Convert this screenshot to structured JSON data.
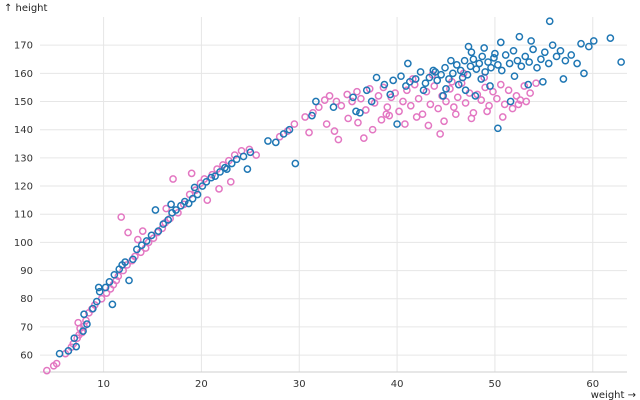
{
  "chart_data": {
    "type": "scatter",
    "title": "",
    "xlabel": "weight →",
    "ylabel": "↑ height",
    "xlim": [
      3.5,
      63.5
    ],
    "ylim": [
      54,
      180
    ],
    "x_ticks": [
      10,
      20,
      30,
      40,
      50,
      60
    ],
    "y_ticks": [
      60,
      70,
      80,
      90,
      100,
      110,
      120,
      130,
      140,
      150,
      160,
      170
    ],
    "grid": true,
    "legend": "none",
    "series": [
      {
        "color": "#e377c2",
        "points": [
          [
            4.2,
            54.5
          ],
          [
            4.9,
            56.2
          ],
          [
            5.2,
            57.0
          ],
          [
            6.1,
            60.5
          ],
          [
            6.7,
            62.8
          ],
          [
            6.9,
            64.0
          ],
          [
            7.3,
            66.0
          ],
          [
            7.5,
            67.2
          ],
          [
            7.8,
            68.0
          ],
          [
            7.6,
            69.5
          ],
          [
            8.0,
            70.2
          ],
          [
            7.4,
            71.5
          ],
          [
            8.2,
            72.3
          ],
          [
            8.5,
            75.0
          ],
          [
            8.8,
            76.3
          ],
          [
            9.1,
            77.8
          ],
          [
            9.8,
            80.0
          ],
          [
            10.3,
            82.0
          ],
          [
            10.7,
            83.5
          ],
          [
            11.0,
            85.0
          ],
          [
            11.3,
            86.5
          ],
          [
            11.5,
            88.0
          ],
          [
            12.0,
            90.0
          ],
          [
            12.4,
            92.0
          ],
          [
            12.9,
            93.5
          ],
          [
            13.2,
            95.0
          ],
          [
            13.8,
            96.5
          ],
          [
            14.3,
            98.0
          ],
          [
            14.6,
            100.0
          ],
          [
            15.1,
            101.5
          ],
          [
            15.5,
            103.5
          ],
          [
            16.0,
            105.0
          ],
          [
            16.3,
            107.0
          ],
          [
            16.8,
            108.5
          ],
          [
            12.5,
            103.5
          ],
          [
            13.5,
            101.0
          ],
          [
            14.0,
            104.0
          ],
          [
            11.8,
            109.0
          ],
          [
            16.4,
            112.0
          ],
          [
            17.6,
            110.5
          ],
          [
            18.2,
            113.5
          ],
          [
            18.8,
            117.0
          ],
          [
            19.4,
            118.5
          ],
          [
            19.9,
            121.0
          ],
          [
            20.3,
            122.5
          ],
          [
            21.1,
            124.0
          ],
          [
            21.6,
            126.0
          ],
          [
            22.2,
            127.5
          ],
          [
            22.8,
            129.0
          ],
          [
            23.4,
            131.0
          ],
          [
            24.1,
            132.5
          ],
          [
            24.9,
            133.0
          ],
          [
            25.6,
            131.0
          ],
          [
            17.1,
            122.5
          ],
          [
            19.0,
            124.5
          ],
          [
            20.6,
            115.0
          ],
          [
            21.8,
            119.0
          ],
          [
            23.0,
            121.5
          ],
          [
            28.0,
            137.5
          ],
          [
            28.8,
            139.5
          ],
          [
            29.5,
            142.0
          ],
          [
            30.6,
            144.5
          ],
          [
            31.4,
            146.0
          ],
          [
            32.0,
            148.0
          ],
          [
            32.6,
            150.5
          ],
          [
            33.1,
            152.0
          ],
          [
            33.8,
            150.0
          ],
          [
            34.3,
            148.5
          ],
          [
            34.9,
            152.5
          ],
          [
            35.4,
            150.0
          ],
          [
            35.9,
            153.5
          ],
          [
            36.3,
            151.0
          ],
          [
            36.8,
            147.0
          ],
          [
            37.2,
            154.5
          ],
          [
            37.7,
            149.5
          ],
          [
            38.1,
            152.0
          ],
          [
            38.6,
            155.0
          ],
          [
            39.0,
            148.0
          ],
          [
            39.4,
            151.5
          ],
          [
            39.8,
            153.0
          ],
          [
            40.2,
            146.5
          ],
          [
            40.6,
            150.0
          ],
          [
            41.0,
            154.0
          ],
          [
            41.4,
            148.5
          ],
          [
            41.8,
            156.0
          ],
          [
            42.2,
            151.0
          ],
          [
            42.6,
            145.5
          ],
          [
            43.0,
            153.5
          ],
          [
            43.4,
            149.0
          ],
          [
            43.8,
            155.5
          ],
          [
            44.2,
            147.5
          ],
          [
            44.6,
            152.0
          ],
          [
            45.0,
            150.0
          ],
          [
            45.4,
            154.5
          ],
          [
            45.8,
            148.0
          ],
          [
            46.2,
            151.5
          ],
          [
            46.6,
            156.5
          ],
          [
            47.0,
            149.5
          ],
          [
            47.4,
            153.0
          ],
          [
            47.8,
            146.0
          ],
          [
            48.2,
            152.5
          ],
          [
            48.6,
            150.5
          ],
          [
            49.0,
            155.0
          ],
          [
            49.4,
            148.5
          ],
          [
            49.8,
            153.5
          ],
          [
            50.2,
            151.0
          ],
          [
            50.6,
            156.0
          ],
          [
            51.0,
            149.0
          ],
          [
            51.4,
            154.0
          ],
          [
            51.8,
            147.5
          ],
          [
            52.2,
            152.0
          ],
          [
            52.6,
            150.5
          ],
          [
            53.0,
            155.5
          ],
          [
            53.6,
            153.0
          ],
          [
            54.2,
            156.5
          ],
          [
            32.8,
            142.0
          ],
          [
            33.6,
            139.5
          ],
          [
            35.0,
            144.0
          ],
          [
            36.0,
            142.5
          ],
          [
            37.5,
            140.0
          ],
          [
            38.4,
            143.5
          ],
          [
            39.2,
            145.0
          ],
          [
            40.8,
            142.0
          ],
          [
            42.0,
            144.5
          ],
          [
            43.2,
            141.5
          ],
          [
            44.8,
            143.0
          ],
          [
            46.0,
            145.5
          ],
          [
            47.6,
            144.0
          ],
          [
            49.2,
            146.5
          ],
          [
            50.8,
            144.5
          ],
          [
            52.4,
            149.0
          ],
          [
            53.2,
            150.0
          ],
          [
            41.6,
            158.0
          ],
          [
            43.6,
            159.5
          ],
          [
            45.6,
            157.0
          ],
          [
            31.0,
            139.0
          ],
          [
            34.0,
            136.5
          ],
          [
            36.6,
            137.0
          ],
          [
            38.9,
            145.5
          ],
          [
            44.4,
            138.5
          ],
          [
            46.8,
            160.0
          ],
          [
            48.9,
            158.5
          ]
        ]
      },
      {
        "color": "#1f77b4",
        "points": [
          [
            5.5,
            60.5
          ],
          [
            6.4,
            61.5
          ],
          [
            7.2,
            63.0
          ],
          [
            7.0,
            66.0
          ],
          [
            7.9,
            68.5
          ],
          [
            8.3,
            71.0
          ],
          [
            8.0,
            74.5
          ],
          [
            8.9,
            76.5
          ],
          [
            9.3,
            79.0
          ],
          [
            9.6,
            82.5
          ],
          [
            10.2,
            84.0
          ],
          [
            10.6,
            86.0
          ],
          [
            11.1,
            88.5
          ],
          [
            11.6,
            90.5
          ],
          [
            11.9,
            92.0
          ],
          [
            12.2,
            93.0
          ],
          [
            13.0,
            94.0
          ],
          [
            13.4,
            97.5
          ],
          [
            13.9,
            99.0
          ],
          [
            14.4,
            100.5
          ],
          [
            14.9,
            102.5
          ],
          [
            15.6,
            104.0
          ],
          [
            16.1,
            106.5
          ],
          [
            16.6,
            108.0
          ],
          [
            17.0,
            110.5
          ],
          [
            17.4,
            111.5
          ],
          [
            17.9,
            113.0
          ],
          [
            18.3,
            114.5
          ],
          [
            18.7,
            113.8
          ],
          [
            19.1,
            115.5
          ],
          [
            19.6,
            117.0
          ],
          [
            20.1,
            120.0
          ],
          [
            20.5,
            121.5
          ],
          [
            21.0,
            123.0
          ],
          [
            21.4,
            123.5
          ],
          [
            21.9,
            125.0
          ],
          [
            22.4,
            126.5
          ],
          [
            23.1,
            128.0
          ],
          [
            23.6,
            129.5
          ],
          [
            24.3,
            130.5
          ],
          [
            25.0,
            132.0
          ],
          [
            9.5,
            84.0
          ],
          [
            10.9,
            78.0
          ],
          [
            12.6,
            86.5
          ],
          [
            15.3,
            111.5
          ],
          [
            16.9,
            113.5
          ],
          [
            19.3,
            119.5
          ],
          [
            22.6,
            126.0
          ],
          [
            24.7,
            126.0
          ],
          [
            26.8,
            136.0
          ],
          [
            27.6,
            135.5
          ],
          [
            28.4,
            138.5
          ],
          [
            29.0,
            140.0
          ],
          [
            29.6,
            128.0
          ],
          [
            31.3,
            145.0
          ],
          [
            33.5,
            148.0
          ],
          [
            35.5,
            151.5
          ],
          [
            36.9,
            154.0
          ],
          [
            37.9,
            158.5
          ],
          [
            38.7,
            156.0
          ],
          [
            39.6,
            157.5
          ],
          [
            40.4,
            159.0
          ],
          [
            40.9,
            155.5
          ],
          [
            41.3,
            157.0
          ],
          [
            41.9,
            158.0
          ],
          [
            42.4,
            160.5
          ],
          [
            42.9,
            156.5
          ],
          [
            43.3,
            158.5
          ],
          [
            43.7,
            161.0
          ],
          [
            44.1,
            157.5
          ],
          [
            44.5,
            159.5
          ],
          [
            44.9,
            162.0
          ],
          [
            45.3,
            158.0
          ],
          [
            45.7,
            160.0
          ],
          [
            46.1,
            163.0
          ],
          [
            46.5,
            161.0
          ],
          [
            46.9,
            164.5
          ],
          [
            47.2,
            159.5
          ],
          [
            47.5,
            162.5
          ],
          [
            47.8,
            165.0
          ],
          [
            48.1,
            161.5
          ],
          [
            48.4,
            163.5
          ],
          [
            48.7,
            166.0
          ],
          [
            49.0,
            160.5
          ],
          [
            49.3,
            164.0
          ],
          [
            49.6,
            162.0
          ],
          [
            49.9,
            165.5
          ],
          [
            50.3,
            163.0
          ],
          [
            50.7,
            161.0
          ],
          [
            51.1,
            166.5
          ],
          [
            51.5,
            163.5
          ],
          [
            51.9,
            168.0
          ],
          [
            52.3,
            164.5
          ],
          [
            52.7,
            162.5
          ],
          [
            53.1,
            166.0
          ],
          [
            53.5,
            164.0
          ],
          [
            53.9,
            168.5
          ],
          [
            54.3,
            162.0
          ],
          [
            54.7,
            165.0
          ],
          [
            55.1,
            167.5
          ],
          [
            55.5,
            163.5
          ],
          [
            55.9,
            170.0
          ],
          [
            56.3,
            166.0
          ],
          [
            56.7,
            168.0
          ],
          [
            57.2,
            164.5
          ],
          [
            57.8,
            166.5
          ],
          [
            58.4,
            163.5
          ],
          [
            59.1,
            160.0
          ],
          [
            59.6,
            169.5
          ],
          [
            60.1,
            171.5
          ],
          [
            61.8,
            172.5
          ],
          [
            62.9,
            164.0
          ],
          [
            55.6,
            178.5
          ],
          [
            47.3,
            169.5
          ],
          [
            50.0,
            167.0
          ],
          [
            45.0,
            154.5
          ],
          [
            47.0,
            154.0
          ],
          [
            50.3,
            140.5
          ],
          [
            48.6,
            158.0
          ],
          [
            46.3,
            156.0
          ],
          [
            52.0,
            159.0
          ],
          [
            53.4,
            156.0
          ],
          [
            36.2,
            146.0
          ],
          [
            37.4,
            150.0
          ],
          [
            39.3,
            152.5
          ],
          [
            42.7,
            154.0
          ],
          [
            44.7,
            152.0
          ],
          [
            40.0,
            142.0
          ],
          [
            48.0,
            152.0
          ],
          [
            51.6,
            150.0
          ],
          [
            57.0,
            158.0
          ],
          [
            58.8,
            170.5
          ],
          [
            54.9,
            157.0
          ],
          [
            49.5,
            155.5
          ],
          [
            46.7,
            158.5
          ],
          [
            45.5,
            164.5
          ],
          [
            43.9,
            160.5
          ],
          [
            41.1,
            163.5
          ],
          [
            47.6,
            167.5
          ],
          [
            48.9,
            169.0
          ],
          [
            50.6,
            171.0
          ],
          [
            52.5,
            173.0
          ],
          [
            53.7,
            171.5
          ],
          [
            35.8,
            146.5
          ],
          [
            31.7,
            150.0
          ]
        ]
      }
    ]
  }
}
